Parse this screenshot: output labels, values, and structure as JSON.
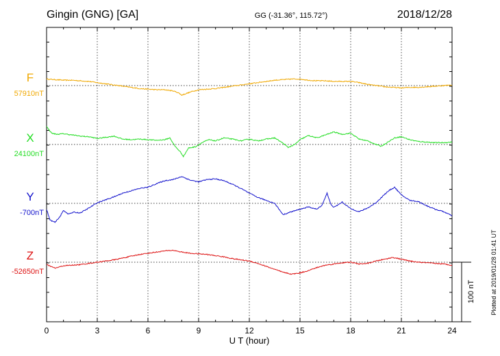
{
  "header": {
    "station": "Gingin (GNG)  [GA]",
    "coords": "GG (-31.36°, 115.72°)",
    "date": "2018/12/28"
  },
  "side_note": "Plotted at 2019/01/28 01:41 UT",
  "scale_label": "100 nT",
  "chart_data": {
    "type": "line",
    "xlabel": "U T (hour)",
    "xlim": [
      0,
      24
    ],
    "xticks": [
      "0",
      "3",
      "6",
      "9",
      "12",
      "15",
      "18",
      "21",
      "24"
    ],
    "scale_bar_nT": 100,
    "grid": true,
    "series": [
      {
        "name": "F",
        "baseline_label": "57910nT",
        "baseline_nT": 57910,
        "color": "#f0a800",
        "x": [
          0,
          0.5,
          1,
          1.5,
          2,
          2.5,
          3,
          3.5,
          4,
          4.5,
          5,
          5.5,
          6,
          6.5,
          7,
          7.5,
          7.8,
          8,
          8.3,
          8.6,
          9,
          9.5,
          10,
          10.5,
          11,
          11.5,
          12,
          12.5,
          13,
          13.5,
          14,
          14.5,
          15,
          15.5,
          16,
          16.5,
          17,
          17.5,
          18,
          18.5,
          19,
          19.5,
          20,
          20.5,
          21,
          21.5,
          22,
          22.5,
          23,
          23.5,
          24
        ],
        "values": [
          57921,
          57920,
          57919,
          57919,
          57918,
          57917,
          57915,
          57913,
          57911,
          57909,
          57907,
          57905,
          57904,
          57903,
          57903,
          57901,
          57898,
          57894,
          57897,
          57900,
          57903,
          57904,
          57905,
          57907,
          57909,
          57911,
          57913,
          57915,
          57917,
          57919,
          57920,
          57921,
          57921,
          57919,
          57918,
          57918,
          57917,
          57917,
          57917,
          57915,
          57912,
          57910,
          57908,
          57907,
          57906,
          57907,
          57907,
          57908,
          57909,
          57910,
          57911
        ]
      },
      {
        "name": "X",
        "baseline_label": "24100nT",
        "baseline_nT": 24100,
        "color": "#22dd22",
        "x": [
          0,
          0.3,
          0.6,
          1,
          1.5,
          2,
          2.5,
          3,
          3.5,
          4,
          4.5,
          5,
          5.5,
          6,
          6.5,
          7,
          7.3,
          7.6,
          7.9,
          8.1,
          8.4,
          8.8,
          9.2,
          9.6,
          10,
          10.5,
          11,
          11.5,
          12,
          12.5,
          13,
          13.5,
          14,
          14.3,
          14.7,
          15,
          15.5,
          16,
          16.5,
          17,
          17.5,
          18,
          18.5,
          19,
          19.5,
          19.8,
          20.2,
          20.6,
          21,
          21.5,
          22,
          22.5,
          23,
          23.5,
          24
        ],
        "values": [
          24130,
          24119,
          24117,
          24118,
          24116,
          24114,
          24113,
          24110,
          24112,
          24114,
          24109,
          24108,
          24109,
          24108,
          24107,
          24108,
          24111,
          24097,
          24088,
          24080,
          24094,
          24096,
          24103,
          24108,
          24106,
          24111,
          24109,
          24106,
          24109,
          24106,
          24109,
          24111,
          24102,
          24095,
          24100,
          24108,
          24115,
          24111,
          24116,
          24121,
          24117,
          24119,
          24109,
          24106,
          24100,
          24097,
          24104,
          24111,
          24113,
          24108,
          24105,
          24104,
          24103,
          24103,
          24104
        ]
      },
      {
        "name": "Y",
        "baseline_label": "-700nT",
        "baseline_nT": -700,
        "color": "#1111cc",
        "x": [
          0,
          0.2,
          0.5,
          0.8,
          1,
          1.3,
          1.6,
          2,
          2.5,
          3,
          3.5,
          4,
          4.5,
          5,
          5.5,
          6,
          6.5,
          7,
          7.5,
          8,
          8.5,
          9,
          9.5,
          10,
          10.5,
          11,
          11.5,
          12,
          12.5,
          13,
          13.5,
          14,
          14.5,
          15,
          15.5,
          16,
          16.3,
          16.6,
          16.8,
          17,
          17.5,
          18,
          18.5,
          19,
          19.5,
          20,
          20.3,
          20.6,
          21,
          21.5,
          22,
          22.5,
          23,
          23.5,
          24
        ],
        "values": [
          -710,
          -728,
          -732,
          -722,
          -712,
          -718,
          -715,
          -716,
          -708,
          -699,
          -694,
          -689,
          -683,
          -679,
          -675,
          -673,
          -667,
          -662,
          -660,
          -655,
          -661,
          -664,
          -660,
          -659,
          -662,
          -668,
          -675,
          -683,
          -690,
          -695,
          -700,
          -719,
          -714,
          -710,
          -706,
          -710,
          -703,
          -683,
          -700,
          -707,
          -698,
          -709,
          -714,
          -708,
          -699,
          -685,
          -678,
          -673,
          -686,
          -695,
          -697,
          -704,
          -710,
          -714,
          -721
        ]
      },
      {
        "name": "Z",
        "baseline_label": "-52650nT",
        "baseline_nT": -52650,
        "color": "#dd1111",
        "x": [
          0,
          0.5,
          1,
          1.5,
          2,
          2.5,
          3,
          3.5,
          4,
          4.5,
          5,
          5.5,
          6,
          6.5,
          7,
          7.5,
          8,
          8.5,
          9,
          9.5,
          10,
          10.5,
          11,
          11.5,
          12,
          12.5,
          13,
          13.5,
          14,
          14.5,
          15,
          15.5,
          16,
          16.5,
          17,
          17.5,
          18,
          18.5,
          19,
          19.5,
          20,
          20.5,
          21,
          21.5,
          22,
          22.5,
          23,
          23.5,
          24
        ],
        "values": [
          -52654,
          -52660,
          -52656,
          -52655,
          -52654,
          -52652,
          -52650,
          -52648,
          -52646,
          -52643,
          -52640,
          -52637,
          -52635,
          -52633,
          -52631,
          -52630,
          -52633,
          -52635,
          -52636,
          -52637,
          -52639,
          -52641,
          -52644,
          -52646,
          -52648,
          -52652,
          -52657,
          -52662,
          -52667,
          -52670,
          -52668,
          -52664,
          -52659,
          -52655,
          -52653,
          -52651,
          -52650,
          -52653,
          -52652,
          -52648,
          -52645,
          -52642,
          -52645,
          -52648,
          -52650,
          -52651,
          -52652,
          -52653,
          -52655
        ]
      }
    ]
  }
}
